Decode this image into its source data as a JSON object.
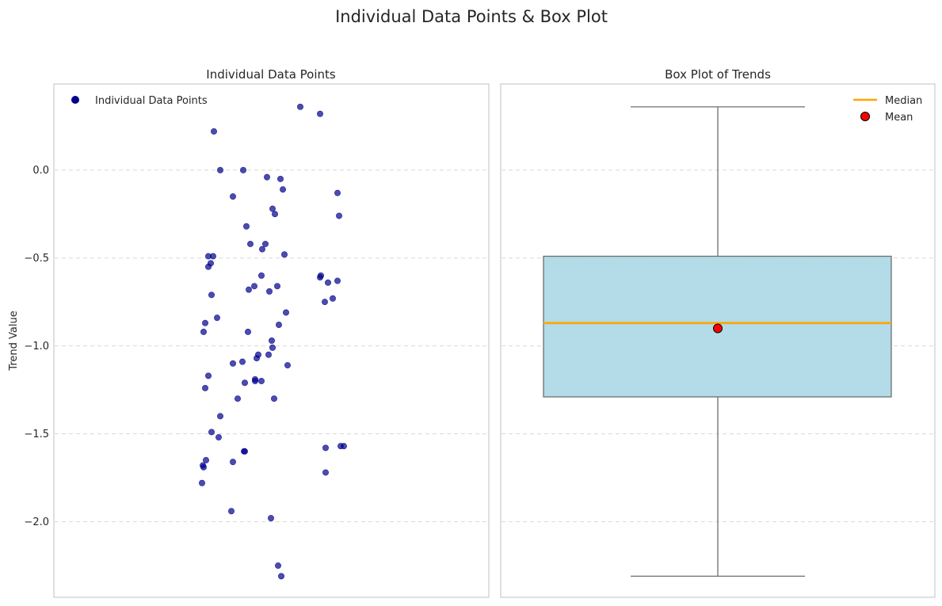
{
  "figure": {
    "title": "Individual Data Points & Box Plot",
    "ylabel": "Trend Value"
  },
  "colors": {
    "point": "#00008b",
    "box_fill": "#add8e6",
    "box_edge": "#6e6e6e",
    "median": "#ffa500",
    "mean_fill": "#ff0000",
    "grid": "#d9d9d9",
    "frame": "#cccccc"
  },
  "chart_data": [
    {
      "type": "scatter",
      "title": "Individual Data Points",
      "ylabel": "Trend Value",
      "xlabel": "",
      "ylim": [
        -2.43,
        0.49
      ],
      "yticks": [
        0.0,
        -0.5,
        -1.0,
        -1.5,
        -2.0
      ],
      "ytick_labels": [
        "0.0",
        "−0.5",
        "−1.0",
        "−1.5",
        "−2.0"
      ],
      "grid": true,
      "legend": {
        "position": "top-left",
        "entries": [
          "Individual Data Points"
        ]
      },
      "points": [
        {
          "jitter": 0.37,
          "y": 0.36
        },
        {
          "jitter": 0.62,
          "y": 0.32
        },
        {
          "jitter": -0.72,
          "y": 0.22
        },
        {
          "jitter": -0.64,
          "y": 0.0
        },
        {
          "jitter": -0.35,
          "y": 0.0
        },
        {
          "jitter": -0.05,
          "y": -0.04
        },
        {
          "jitter": 0.12,
          "y": -0.05
        },
        {
          "jitter": 0.15,
          "y": -0.11
        },
        {
          "jitter": 0.84,
          "y": -0.13
        },
        {
          "jitter": -0.48,
          "y": -0.15
        },
        {
          "jitter": 0.02,
          "y": -0.22
        },
        {
          "jitter": 0.05,
          "y": -0.25
        },
        {
          "jitter": 0.86,
          "y": -0.26
        },
        {
          "jitter": -0.31,
          "y": -0.32
        },
        {
          "jitter": -0.26,
          "y": -0.42
        },
        {
          "jitter": -0.07,
          "y": -0.42
        },
        {
          "jitter": -0.11,
          "y": -0.45
        },
        {
          "jitter": 0.17,
          "y": -0.48
        },
        {
          "jitter": -0.73,
          "y": -0.49
        },
        {
          "jitter": -0.79,
          "y": -0.49
        },
        {
          "jitter": -0.76,
          "y": -0.53
        },
        {
          "jitter": -0.79,
          "y": -0.55
        },
        {
          "jitter": 0.63,
          "y": -0.6
        },
        {
          "jitter": -0.12,
          "y": -0.6
        },
        {
          "jitter": 0.62,
          "y": -0.61
        },
        {
          "jitter": 0.72,
          "y": -0.64
        },
        {
          "jitter": 0.84,
          "y": -0.63
        },
        {
          "jitter": -0.21,
          "y": -0.66
        },
        {
          "jitter": 0.08,
          "y": -0.66
        },
        {
          "jitter": -0.28,
          "y": -0.68
        },
        {
          "jitter": -0.02,
          "y": -0.69
        },
        {
          "jitter": -0.75,
          "y": -0.71
        },
        {
          "jitter": 0.78,
          "y": -0.73
        },
        {
          "jitter": 0.68,
          "y": -0.75
        },
        {
          "jitter": 0.19,
          "y": -0.81
        },
        {
          "jitter": -0.68,
          "y": -0.84
        },
        {
          "jitter": -0.83,
          "y": -0.87
        },
        {
          "jitter": 0.1,
          "y": -0.88
        },
        {
          "jitter": -0.85,
          "y": -0.92
        },
        {
          "jitter": -0.29,
          "y": -0.92
        },
        {
          "jitter": 0.01,
          "y": -0.97
        },
        {
          "jitter": 0.02,
          "y": -1.01
        },
        {
          "jitter": -0.16,
          "y": -1.05
        },
        {
          "jitter": -0.03,
          "y": -1.05
        },
        {
          "jitter": -0.18,
          "y": -1.07
        },
        {
          "jitter": -0.36,
          "y": -1.09
        },
        {
          "jitter": -0.48,
          "y": -1.1
        },
        {
          "jitter": 0.21,
          "y": -1.11
        },
        {
          "jitter": -0.79,
          "y": -1.17
        },
        {
          "jitter": -0.2,
          "y": -1.19
        },
        {
          "jitter": -0.2,
          "y": -1.2
        },
        {
          "jitter": -0.12,
          "y": -1.2
        },
        {
          "jitter": -0.33,
          "y": -1.21
        },
        {
          "jitter": -0.83,
          "y": -1.24
        },
        {
          "jitter": -0.42,
          "y": -1.3
        },
        {
          "jitter": 0.04,
          "y": -1.3
        },
        {
          "jitter": -0.64,
          "y": -1.4
        },
        {
          "jitter": -0.75,
          "y": -1.49
        },
        {
          "jitter": -0.66,
          "y": -1.52
        },
        {
          "jitter": 0.92,
          "y": -1.57
        },
        {
          "jitter": 0.88,
          "y": -1.57
        },
        {
          "jitter": 0.69,
          "y": -1.58
        },
        {
          "jitter": -0.33,
          "y": -1.6
        },
        {
          "jitter": -0.34,
          "y": -1.6
        },
        {
          "jitter": -0.48,
          "y": -1.66
        },
        {
          "jitter": -0.82,
          "y": -1.65
        },
        {
          "jitter": -0.86,
          "y": -1.68
        },
        {
          "jitter": -0.85,
          "y": -1.69
        },
        {
          "jitter": 0.69,
          "y": -1.72
        },
        {
          "jitter": -0.87,
          "y": -1.78
        },
        {
          "jitter": -0.5,
          "y": -1.94
        },
        {
          "jitter": -0.0,
          "y": -1.98
        },
        {
          "jitter": 0.09,
          "y": -2.25
        },
        {
          "jitter": 0.13,
          "y": -2.31
        }
      ]
    },
    {
      "type": "box",
      "title": "Box Plot of Trends",
      "xlabel": "",
      "ylim": [
        -2.43,
        0.49
      ],
      "grid": true,
      "legend": {
        "position": "top-right",
        "entries": [
          "Median",
          "Mean"
        ]
      },
      "whisker_high": 0.36,
      "q3": -0.49,
      "median": -0.87,
      "mean": -0.9,
      "q1": -1.29,
      "whisker_low": -2.31
    }
  ]
}
